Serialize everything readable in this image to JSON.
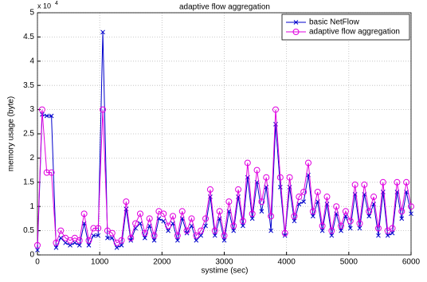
{
  "chart_data": {
    "type": "line",
    "title": "adaptive flow aggregation",
    "x_label": "systime (sec)",
    "y_label": "memory usage (byte)",
    "y_scale_base": "x 10",
    "y_scale_exponent": "4",
    "x": [
      0,
      75,
      150,
      225,
      300,
      375,
      450,
      525,
      600,
      675,
      750,
      825,
      900,
      975,
      1050,
      1125,
      1200,
      1275,
      1350,
      1425,
      1500,
      1575,
      1650,
      1725,
      1800,
      1875,
      1950,
      2025,
      2100,
      2175,
      2250,
      2325,
      2400,
      2475,
      2550,
      2625,
      2700,
      2775,
      2850,
      2925,
      3000,
      3075,
      3150,
      3225,
      3300,
      3375,
      3450,
      3525,
      3600,
      3675,
      3750,
      3825,
      3900,
      3975,
      4050,
      4125,
      4200,
      4275,
      4350,
      4425,
      4500,
      4575,
      4650,
      4725,
      4800,
      4875,
      4950,
      5025,
      5100,
      5175,
      5250,
      5325,
      5400,
      5475,
      5550,
      5625,
      5700,
      5775,
      5850,
      5925,
      6000
    ],
    "series": [
      {
        "name": "basic NetFlow",
        "color": "#0000cc",
        "marker": "x",
        "values": [
          0.1,
          2.9,
          2.87,
          2.87,
          0.15,
          0.35,
          0.25,
          0.2,
          0.25,
          0.2,
          0.65,
          0.2,
          0.4,
          0.4,
          4.6,
          0.35,
          0.35,
          0.15,
          0.2,
          0.95,
          0.3,
          0.55,
          0.65,
          0.35,
          0.6,
          0.3,
          0.75,
          0.7,
          0.5,
          0.65,
          0.3,
          0.75,
          0.45,
          0.6,
          0.3,
          0.4,
          0.6,
          1.2,
          0.4,
          0.75,
          0.3,
          0.9,
          0.5,
          1.2,
          0.6,
          1.6,
          0.75,
          1.5,
          0.9,
          1.4,
          0.5,
          2.7,
          1.4,
          0.4,
          1.4,
          0.7,
          1.05,
          1.1,
          1.65,
          0.8,
          1.1,
          0.5,
          1.05,
          0.4,
          0.85,
          0.5,
          0.8,
          0.55,
          1.25,
          0.55,
          1.25,
          0.8,
          1.05,
          0.4,
          1.3,
          0.4,
          0.45,
          1.3,
          0.75,
          1.3,
          0.85
        ]
      },
      {
        "name": "adaptive flow aggregation",
        "color": "#e000e0",
        "marker": "o",
        "values": [
          0.2,
          3.0,
          1.7,
          1.7,
          0.25,
          0.5,
          0.35,
          0.3,
          0.35,
          0.3,
          0.85,
          0.3,
          0.55,
          0.55,
          3.0,
          0.5,
          0.45,
          0.25,
          0.3,
          1.1,
          0.35,
          0.65,
          0.85,
          0.45,
          0.75,
          0.4,
          0.9,
          0.85,
          0.6,
          0.8,
          0.4,
          0.9,
          0.5,
          0.75,
          0.4,
          0.5,
          0.75,
          1.35,
          0.5,
          0.9,
          0.4,
          1.1,
          0.6,
          1.35,
          0.7,
          1.9,
          0.85,
          1.75,
          1.1,
          1.6,
          0.8,
          3.0,
          1.6,
          0.45,
          1.6,
          0.8,
          1.2,
          1.3,
          1.9,
          0.9,
          1.3,
          0.6,
          1.2,
          0.5,
          1.0,
          0.6,
          0.9,
          0.7,
          1.45,
          0.65,
          1.45,
          0.9,
          1.2,
          0.55,
          1.5,
          0.5,
          0.55,
          1.5,
          0.9,
          1.5,
          1.0
        ]
      }
    ],
    "xlim": [
      0,
      6000
    ],
    "xticks": [
      0,
      1000,
      2000,
      3000,
      4000,
      5000,
      6000
    ],
    "ylim": [
      0,
      5
    ],
    "yticks": [
      0,
      0.5,
      1,
      1.5,
      2,
      2.5,
      3,
      3.5,
      4,
      4.5,
      5
    ],
    "grid": true,
    "legend": "top-right"
  }
}
